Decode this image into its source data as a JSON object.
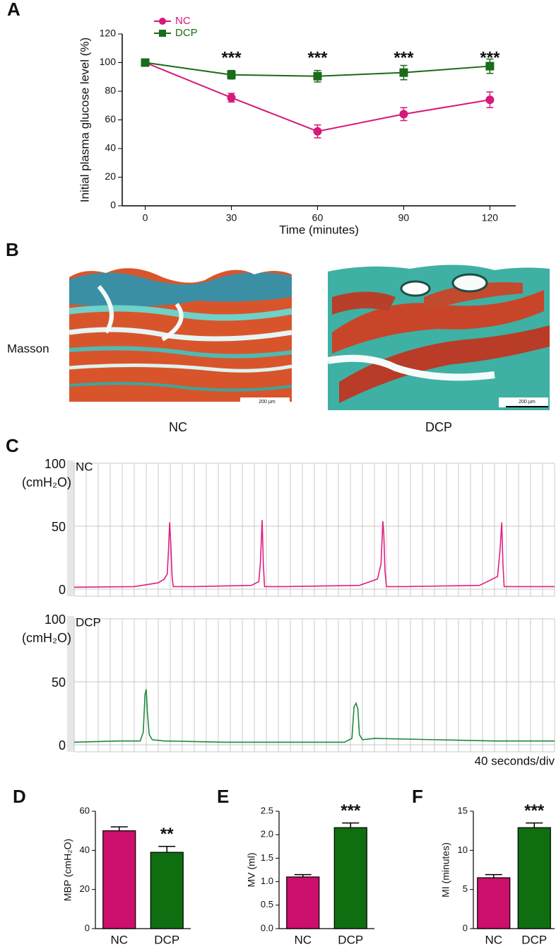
{
  "chart_data": [
    {
      "type": "line",
      "panel": "A",
      "xlabel": "Time (minutes)",
      "ylabel": "Initial plasma glucose level (%)",
      "x": [
        0,
        30,
        60,
        90,
        120
      ],
      "xlim": [
        -8,
        129
      ],
      "xticks": [
        0,
        30,
        60,
        90,
        120
      ],
      "ylim": [
        0,
        120
      ],
      "yticks": [
        0,
        20,
        40,
        60,
        80,
        100,
        120
      ],
      "legend": "upper left",
      "series": [
        {
          "name": "NC",
          "color": "#d6197a",
          "marker": "circle",
          "values": [
            100,
            75.5,
            52,
            64,
            74
          ],
          "errors": [
            0,
            3,
            4.5,
            4.5,
            5.5
          ]
        },
        {
          "name": "DCP",
          "color": "#1a6b1a",
          "marker": "square",
          "values": [
            100,
            91.5,
            90.5,
            93,
            97.5
          ],
          "errors": [
            0,
            3,
            4,
            5,
            5
          ]
        }
      ],
      "annotations": [
        {
          "x": 30,
          "text": "***"
        },
        {
          "x": 60,
          "text": "***"
        },
        {
          "x": 90,
          "text": "***"
        },
        {
          "x": 120,
          "text": "***"
        }
      ]
    },
    {
      "type": "trace",
      "panel": "C",
      "title": "NC",
      "ylabel": "(cmH₂O)",
      "color": "#e0207f",
      "xlim": [
        0,
        1600
      ],
      "xgrid_step": 40,
      "ylim": [
        0,
        100
      ],
      "yticks": [
        0,
        50,
        100
      ],
      "grid": true,
      "x": [
        0,
        200,
        280,
        300,
        310,
        314,
        318,
        322,
        326,
        330,
        400,
        590,
        615,
        620,
        626,
        630,
        634,
        700,
        950,
        1010,
        1022,
        1028,
        1031,
        1035,
        1040,
        1100,
        1350,
        1410,
        1418,
        1424,
        1428,
        1432,
        1500,
        1600
      ],
      "values": [
        1.5,
        2,
        5,
        8,
        12,
        30,
        53,
        35,
        10,
        2,
        2,
        3,
        6,
        20,
        55,
        20,
        2,
        2,
        3,
        8,
        20,
        54,
        45,
        15,
        2,
        2,
        3,
        10,
        30,
        53,
        20,
        2,
        2,
        2
      ]
    },
    {
      "type": "trace",
      "title": "DCP",
      "ylabel": "(cmH₂O)",
      "color": "#1f8a3a",
      "scale": "40 seconds/div",
      "xlim": [
        0,
        1600
      ],
      "xgrid_step": 40,
      "ylim": [
        0,
        100
      ],
      "yticks": [
        0,
        50,
        100
      ],
      "grid": true,
      "x": [
        0,
        150,
        220,
        230,
        236,
        240,
        244,
        250,
        260,
        300,
        500,
        700,
        900,
        925,
        932,
        939,
        945,
        950,
        960,
        1000,
        1200,
        1400,
        1600
      ],
      "values": [
        2,
        3,
        3,
        10,
        40,
        44,
        25,
        8,
        4,
        3,
        2,
        2,
        2,
        5,
        30,
        33,
        28,
        8,
        4,
        5,
        4,
        3,
        3
      ]
    },
    {
      "type": "bar",
      "panel": "D",
      "ylabel": "MBP (cmH₂O)",
      "categories": [
        "NC",
        "DCP"
      ],
      "values": [
        50,
        39
      ],
      "errors": [
        2,
        3
      ],
      "colors": [
        "#cc0e6c",
        "#0f6e10"
      ],
      "ylim": [
        0,
        60
      ],
      "yticks": [
        0,
        20,
        40,
        60
      ],
      "annotation": {
        "index": 1,
        "text": "**"
      }
    },
    {
      "type": "bar",
      "panel": "E",
      "ylabel": "MV (ml)",
      "categories": [
        "NC",
        "DCP"
      ],
      "values": [
        1.1,
        2.15
      ],
      "errors": [
        0.05,
        0.1
      ],
      "colors": [
        "#cc0e6c",
        "#0f6e10"
      ],
      "ylim": [
        0,
        2.5
      ],
      "yticks": [
        {
          "value": 0,
          "label": "0.0"
        },
        0.5,
        {
          "value": 1,
          "label": "1.0"
        },
        1.5,
        {
          "value": 2,
          "label": "2.0"
        },
        2.5
      ],
      "annotation": {
        "index": 1,
        "text": "***"
      }
    },
    {
      "type": "bar",
      "panel": "F",
      "ylabel": "MI (minutes)",
      "categories": [
        "NC",
        "DCP"
      ],
      "values": [
        6.5,
        12.9
      ],
      "errors": [
        0.4,
        0.6
      ],
      "colors": [
        "#cc0e6c",
        "#0f6e10"
      ],
      "ylim": [
        0,
        15
      ],
      "yticks": [
        0,
        5,
        10,
        15
      ],
      "annotation": {
        "index": 1,
        "text": "***"
      }
    }
  ],
  "micrographs": {
    "panel": "B",
    "stain": "Masson",
    "images": [
      {
        "label": "NC",
        "scale_bar": "200 µm"
      },
      {
        "label": "DCP",
        "scale_bar": "200 µm"
      }
    ]
  }
}
